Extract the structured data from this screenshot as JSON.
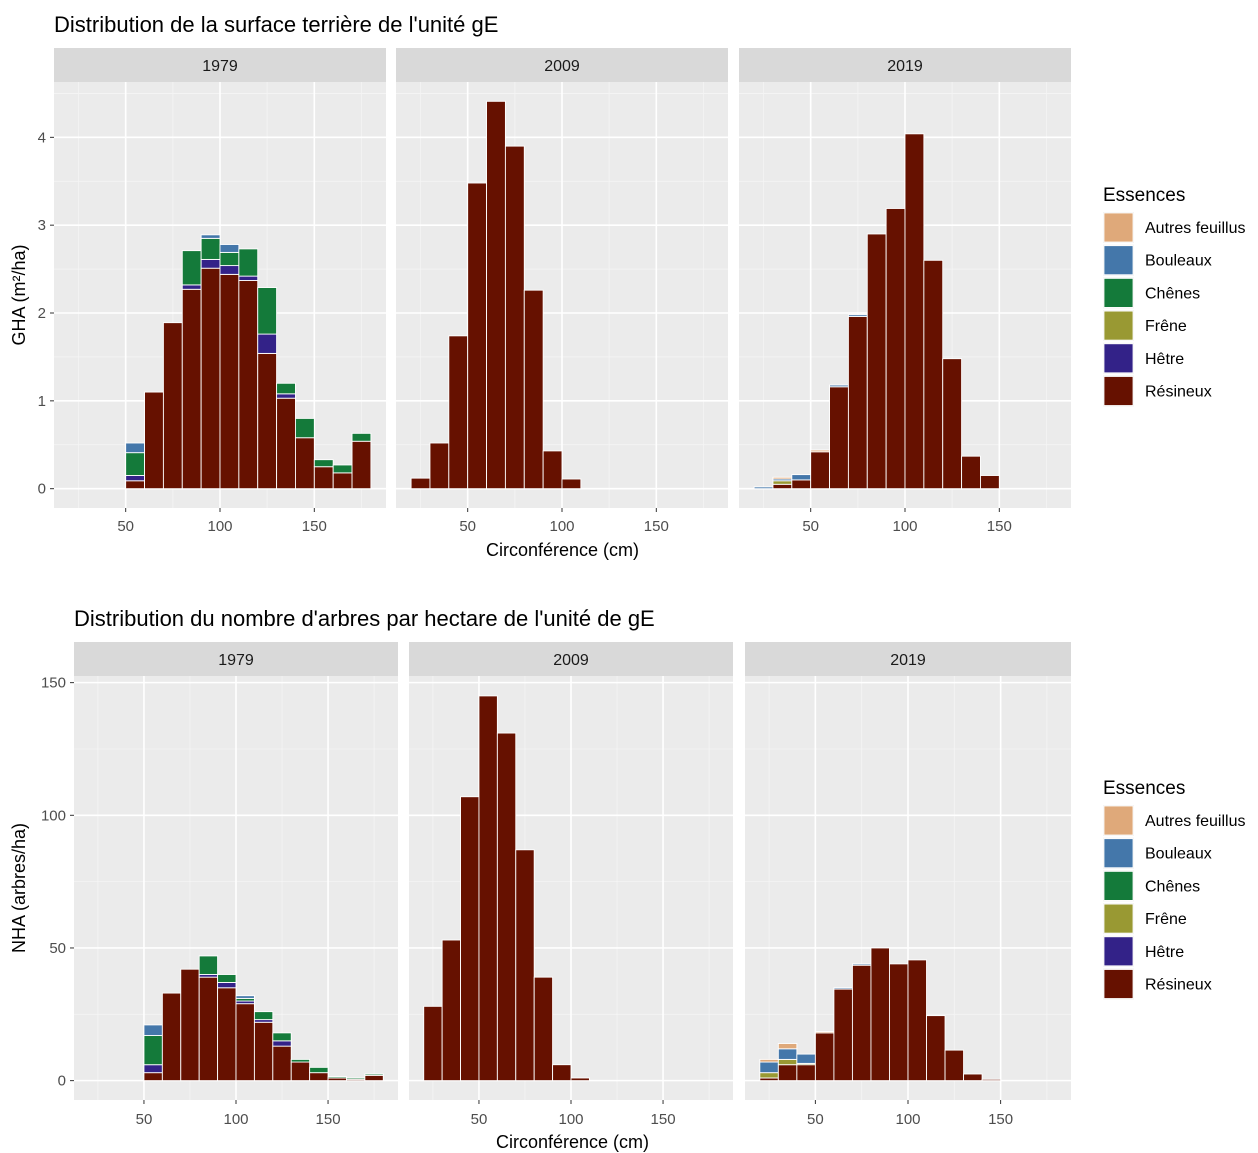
{
  "colors": {
    "Autres feuillus": "#dfa97a",
    "Bouleaux": "#4477aa",
    "Chênes": "#147a3a",
    "Frêne": "#999933",
    "Hêtre": "#332288",
    "Résineux": "#661100"
  },
  "chart_data": [
    {
      "type": "bar",
      "stacked": true,
      "title": "Distribution de la surface terrière de l'unité gE",
      "xlabel": "Circonférence (cm)",
      "ylabel": "GHA (m²/ha)",
      "xlim": [
        20,
        180
      ],
      "ylim": [
        0,
        4.5
      ],
      "xticks": [
        50,
        100,
        150
      ],
      "yticks": [
        0,
        1,
        2,
        3,
        4
      ],
      "grid": true,
      "legend": {
        "title": "Essences",
        "position": "right",
        "entries": [
          "Autres feuillus",
          "Bouleaux",
          "Chênes",
          "Frêne",
          "Hêtre",
          "Résineux"
        ]
      },
      "panels": [
        {
          "label": "1979",
          "bins": [
            {
              "x": 55,
              "Résineux": 0.09,
              "Hêtre": 0.06,
              "Chênes": 0.26,
              "Bouleaux": 0.11
            },
            {
              "x": 65,
              "Résineux": 1.1
            },
            {
              "x": 75,
              "Résineux": 1.89
            },
            {
              "x": 85,
              "Résineux": 2.27,
              "Hêtre": 0.05,
              "Chênes": 0.39
            },
            {
              "x": 95,
              "Résineux": 2.51,
              "Hêtre": 0.1,
              "Chênes": 0.24,
              "Bouleaux": 0.04
            },
            {
              "x": 105,
              "Résineux": 2.44,
              "Hêtre": 0.1,
              "Chênes": 0.15,
              "Bouleaux": 0.09
            },
            {
              "x": 115,
              "Résineux": 2.37,
              "Hêtre": 0.05,
              "Chênes": 0.31
            },
            {
              "x": 125,
              "Résineux": 1.54,
              "Hêtre": 0.22,
              "Chênes": 0.53
            },
            {
              "x": 135,
              "Résineux": 1.03,
              "Hêtre": 0.05,
              "Chênes": 0.12
            },
            {
              "x": 145,
              "Résineux": 0.58,
              "Chênes": 0.22
            },
            {
              "x": 155,
              "Résineux": 0.25,
              "Chênes": 0.08
            },
            {
              "x": 165,
              "Résineux": 0.18,
              "Chênes": 0.09
            },
            {
              "x": 175,
              "Résineux": 0.54,
              "Chênes": 0.09
            }
          ]
        },
        {
          "label": "2009",
          "bins": [
            {
              "x": 25,
              "Résineux": 0.12
            },
            {
              "x": 35,
              "Résineux": 0.52
            },
            {
              "x": 45,
              "Résineux": 1.74
            },
            {
              "x": 55,
              "Résineux": 3.48
            },
            {
              "x": 65,
              "Résineux": 4.41
            },
            {
              "x": 75,
              "Résineux": 3.9
            },
            {
              "x": 85,
              "Résineux": 2.26
            },
            {
              "x": 95,
              "Résineux": 0.43
            },
            {
              "x": 105,
              "Résineux": 0.11
            }
          ]
        },
        {
          "label": "2019",
          "bins": [
            {
              "x": 25,
              "Bouleaux": 0.02
            },
            {
              "x": 35,
              "Résineux": 0.05,
              "Frêne": 0.04,
              "Bouleaux": 0.02,
              "Autres feuillus": 0.02
            },
            {
              "x": 45,
              "Résineux": 0.1,
              "Bouleaux": 0.06
            },
            {
              "x": 55,
              "Résineux": 0.42,
              "Autres feuillus": 0.02
            },
            {
              "x": 65,
              "Résineux": 1.16,
              "Bouleaux": 0.02
            },
            {
              "x": 75,
              "Résineux": 1.96,
              "Bouleaux": 0.02
            },
            {
              "x": 85,
              "Résineux": 2.9
            },
            {
              "x": 95,
              "Résineux": 3.19
            },
            {
              "x": 105,
              "Résineux": 4.04
            },
            {
              "x": 115,
              "Résineux": 2.6
            },
            {
              "x": 125,
              "Résineux": 1.48
            },
            {
              "x": 135,
              "Résineux": 0.37
            },
            {
              "x": 145,
              "Résineux": 0.15
            }
          ]
        }
      ]
    },
    {
      "type": "bar",
      "stacked": true,
      "title": "Distribution du nombre d'arbres par hectare de l'unité de gE",
      "xlabel": "Circonférence (cm)",
      "ylabel": "NHA (arbres/ha)",
      "xlim": [
        20,
        180
      ],
      "ylim": [
        0,
        150
      ],
      "xticks": [
        50,
        100,
        150
      ],
      "yticks": [
        0,
        50,
        100,
        150
      ],
      "grid": true,
      "legend": {
        "title": "Essences",
        "position": "right",
        "entries": [
          "Autres feuillus",
          "Bouleaux",
          "Chênes",
          "Frêne",
          "Hêtre",
          "Résineux"
        ]
      },
      "panels": [
        {
          "label": "1979",
          "bins": [
            {
              "x": 55,
              "Résineux": 3,
              "Hêtre": 3,
              "Chênes": 11,
              "Bouleaux": 4
            },
            {
              "x": 65,
              "Résineux": 33
            },
            {
              "x": 75,
              "Résineux": 42
            },
            {
              "x": 85,
              "Résineux": 39,
              "Hêtre": 1,
              "Chênes": 7
            },
            {
              "x": 95,
              "Résineux": 35,
              "Hêtre": 2,
              "Chênes": 3
            },
            {
              "x": 105,
              "Résineux": 29,
              "Hêtre": 1,
              "Chênes": 1,
              "Bouleaux": 1
            },
            {
              "x": 115,
              "Résineux": 22,
              "Hêtre": 1,
              "Chênes": 3
            },
            {
              "x": 125,
              "Résineux": 13,
              "Hêtre": 2,
              "Chênes": 3
            },
            {
              "x": 135,
              "Résineux": 7,
              "Chênes": 1
            },
            {
              "x": 145,
              "Résineux": 3,
              "Chênes": 2
            },
            {
              "x": 155,
              "Résineux": 1,
              "Chênes": 0.5
            },
            {
              "x": 165,
              "Résineux": 0.5,
              "Chênes": 0.5
            },
            {
              "x": 175,
              "Résineux": 2,
              "Chênes": 0.5
            }
          ]
        },
        {
          "label": "2009",
          "bins": [
            {
              "x": 25,
              "Résineux": 28
            },
            {
              "x": 35,
              "Résineux": 53
            },
            {
              "x": 45,
              "Résineux": 107
            },
            {
              "x": 55,
              "Résineux": 145
            },
            {
              "x": 65,
              "Résineux": 131
            },
            {
              "x": 75,
              "Résineux": 87
            },
            {
              "x": 85,
              "Résineux": 39
            },
            {
              "x": 95,
              "Résineux": 6
            },
            {
              "x": 105,
              "Résineux": 1
            }
          ]
        },
        {
          "label": "2019",
          "bins": [
            {
              "x": 25,
              "Résineux": 1,
              "Frêne": 2,
              "Bouleaux": 4,
              "Autres feuillus": 1
            },
            {
              "x": 35,
              "Résineux": 6,
              "Frêne": 2,
              "Bouleaux": 4,
              "Autres feuillus": 2
            },
            {
              "x": 45,
              "Résineux": 6,
              "Frêne": 0.5,
              "Bouleaux": 3.5
            },
            {
              "x": 55,
              "Résineux": 18,
              "Autres feuillus": 0.5
            },
            {
              "x": 65,
              "Résineux": 34.5,
              "Bouleaux": 0.5
            },
            {
              "x": 75,
              "Résineux": 43.5,
              "Bouleaux": 0.5
            },
            {
              "x": 85,
              "Résineux": 50
            },
            {
              "x": 95,
              "Résineux": 44
            },
            {
              "x": 105,
              "Résineux": 45.5
            },
            {
              "x": 115,
              "Résineux": 24.5
            },
            {
              "x": 125,
              "Résineux": 11.5
            },
            {
              "x": 135,
              "Résineux": 2.5
            },
            {
              "x": 145,
              "Résineux": 0.5
            }
          ]
        }
      ]
    }
  ]
}
